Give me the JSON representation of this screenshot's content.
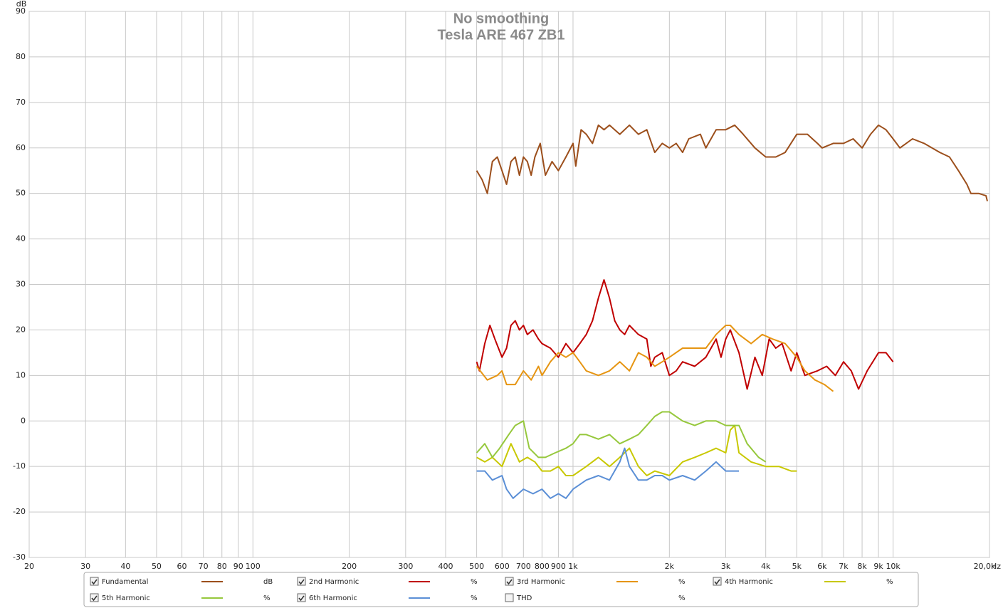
{
  "chart_data": {
    "type": "line",
    "title": "No smoothing",
    "subtitle": "Tesla ARE 467 ZB1",
    "y_label": "dB",
    "x_label": "Hz",
    "x_log": true,
    "grid": true,
    "xlim": [
      20,
      20000
    ],
    "ylim": [
      -30,
      90
    ],
    "xticks": [
      20,
      30,
      40,
      50,
      60,
      70,
      80,
      90,
      100,
      200,
      300,
      400,
      500,
      600,
      700,
      800,
      900,
      {
        "value": 1000,
        "label": "1k"
      },
      {
        "value": 2000,
        "label": "2k"
      },
      {
        "value": 3000,
        "label": "3k"
      },
      {
        "value": 4000,
        "label": "4k"
      },
      {
        "value": 5000,
        "label": "5k"
      },
      {
        "value": 6000,
        "label": "6k"
      },
      {
        "value": 7000,
        "label": "7k"
      },
      {
        "value": 8000,
        "label": "8k"
      },
      {
        "value": 9000,
        "label": "9k"
      },
      {
        "value": 10000,
        "label": "10k"
      },
      {
        "value": 20000,
        "label": "20,0k"
      }
    ],
    "yticks": [
      -30,
      -20,
      -10,
      0,
      10,
      20,
      30,
      40,
      50,
      60,
      70,
      80,
      90
    ],
    "series": [
      {
        "name": "Fundamental",
        "unit": "dB",
        "checked": true,
        "color": "#9c4f1c",
        "x": [
          500,
          520,
          540,
          560,
          580,
          600,
          620,
          640,
          660,
          680,
          700,
          720,
          740,
          760,
          790,
          820,
          860,
          900,
          950,
          1000,
          1020,
          1060,
          1100,
          1150,
          1200,
          1250,
          1300,
          1400,
          1500,
          1600,
          1700,
          1800,
          1900,
          2000,
          2100,
          2200,
          2300,
          2500,
          2600,
          2800,
          3000,
          3200,
          3400,
          3700,
          4000,
          4300,
          4600,
          5000,
          5400,
          5800,
          6000,
          6500,
          7000,
          7500,
          8000,
          8500,
          9000,
          9500,
          10000,
          10500,
          11500,
          12500,
          14000,
          15000,
          16000,
          17000,
          17500,
          18500,
          19500,
          19700
        ],
        "values": [
          55,
          53,
          50,
          57,
          58,
          55,
          52,
          57,
          58,
          54,
          58,
          57,
          54,
          58,
          61,
          54,
          57,
          55,
          58,
          61,
          56,
          64,
          63,
          61,
          65,
          64,
          65,
          63,
          65,
          63,
          64,
          59,
          61,
          60,
          61,
          59,
          62,
          63,
          60,
          64,
          64,
          65,
          63,
          60,
          58,
          58,
          59,
          63,
          63,
          61,
          60,
          61,
          61,
          62,
          60,
          63,
          65,
          64,
          62,
          60,
          62,
          61,
          59,
          58,
          55,
          52,
          50,
          50,
          49.5,
          48.3
        ]
      },
      {
        "name": "2nd Harmonic",
        "unit": "%",
        "checked": true,
        "color": "#c00000",
        "x": [
          500,
          510,
          530,
          550,
          570,
          600,
          620,
          640,
          660,
          680,
          700,
          720,
          750,
          780,
          800,
          850,
          900,
          950,
          1000,
          1050,
          1100,
          1150,
          1200,
          1250,
          1300,
          1350,
          1400,
          1450,
          1500,
          1600,
          1700,
          1750,
          1800,
          1900,
          2000,
          2100,
          2200,
          2400,
          2600,
          2800,
          2900,
          3000,
          3100,
          3300,
          3500,
          3700,
          3900,
          4100,
          4300,
          4500,
          4800,
          5000,
          5300,
          5800,
          6200,
          6600,
          7000,
          7400,
          7800,
          8300,
          9000,
          9500,
          10000
        ],
        "values": [
          13,
          11,
          17,
          21,
          18,
          14,
          16,
          21,
          22,
          20,
          21,
          19,
          20,
          18,
          17,
          16,
          14,
          17,
          15,
          17,
          19,
          22,
          27,
          31,
          27,
          22,
          20,
          19,
          21,
          19,
          18,
          12,
          14,
          15,
          10,
          11,
          13,
          12,
          14,
          18,
          14,
          18,
          20,
          15,
          7,
          14,
          10,
          18,
          16,
          17,
          11,
          15,
          10,
          11,
          12,
          10,
          13,
          11,
          7,
          11,
          15,
          15,
          13
        ]
      },
      {
        "name": "3rd Harmonic",
        "unit": "%",
        "checked": true,
        "color": "#e69512",
        "x": [
          500,
          540,
          580,
          600,
          620,
          660,
          700,
          740,
          780,
          800,
          850,
          900,
          950,
          1000,
          1050,
          1100,
          1200,
          1300,
          1400,
          1500,
          1600,
          1700,
          1800,
          1900,
          2000,
          2200,
          2400,
          2600,
          2800,
          3000,
          3100,
          3300,
          3600,
          3900,
          4200,
          4600,
          5000,
          5300,
          5700,
          6100,
          6500
        ],
        "values": [
          12,
          9,
          10,
          11,
          8,
          8,
          11,
          9,
          12,
          10,
          13,
          15,
          14,
          15,
          13,
          11,
          10,
          11,
          13,
          11,
          15,
          14,
          12,
          13,
          14,
          16,
          16,
          16,
          19,
          21,
          21,
          19,
          17,
          19,
          18,
          17,
          14,
          11,
          9,
          8,
          6.5
        ]
      },
      {
        "name": "4th Harmonic",
        "unit": "%",
        "checked": true,
        "color": "#c8c800",
        "x": [
          500,
          530,
          560,
          600,
          640,
          680,
          720,
          760,
          800,
          850,
          900,
          950,
          1000,
          1100,
          1200,
          1300,
          1400,
          1500,
          1600,
          1700,
          1800,
          2000,
          2200,
          2400,
          2600,
          2800,
          3000,
          3100,
          3200,
          3300,
          3600,
          4000,
          4400,
          4800,
          5000
        ],
        "values": [
          -8,
          -9,
          -8,
          -10,
          -5,
          -9,
          -8,
          -9,
          -11,
          -11,
          -10,
          -12,
          -12,
          -10,
          -8,
          -10,
          -8,
          -6,
          -10,
          -12,
          -11,
          -12,
          -9,
          -8,
          -7,
          -6,
          -7,
          -2,
          -1,
          -7,
          -9,
          -10,
          -10,
          -11,
          -11
        ]
      },
      {
        "name": "5th Harmonic",
        "unit": "%",
        "checked": true,
        "color": "#96c83c",
        "x": [
          500,
          530,
          560,
          590,
          630,
          660,
          700,
          730,
          780,
          820,
          880,
          950,
          1000,
          1050,
          1100,
          1200,
          1300,
          1400,
          1500,
          1600,
          1700,
          1800,
          1900,
          2000,
          2200,
          2400,
          2600,
          2800,
          3000,
          3300,
          3500,
          3800,
          4000
        ],
        "values": [
          -7,
          -5,
          -8,
          -6,
          -3,
          -1,
          0,
          -6,
          -8,
          -8,
          -7,
          -6,
          -5,
          -3,
          -3,
          -4,
          -3,
          -5,
          -4,
          -3,
          -1,
          1,
          2,
          2,
          0,
          -1,
          0,
          0,
          -1,
          -1,
          -5,
          -8,
          -9
        ]
      },
      {
        "name": "6th Harmonic",
        "unit": "%",
        "checked": true,
        "color": "#5b8fd6",
        "x": [
          500,
          530,
          560,
          600,
          620,
          650,
          700,
          750,
          800,
          850,
          900,
          950,
          1000,
          1100,
          1200,
          1300,
          1400,
          1450,
          1500,
          1600,
          1700,
          1800,
          1900,
          2000,
          2200,
          2400,
          2600,
          2800,
          3000,
          3200,
          3300
        ],
        "values": [
          -11,
          -11,
          -13,
          -12,
          -15,
          -17,
          -15,
          -16,
          -15,
          -17,
          -16,
          -17,
          -15,
          -13,
          -12,
          -13,
          -9,
          -6,
          -10,
          -13,
          -13,
          -12,
          -12,
          -13,
          -12,
          -13,
          -11,
          -9,
          -11,
          -11,
          -11
        ]
      },
      {
        "name": "THD",
        "unit": "%",
        "checked": false,
        "color": "#444444"
      }
    ]
  }
}
